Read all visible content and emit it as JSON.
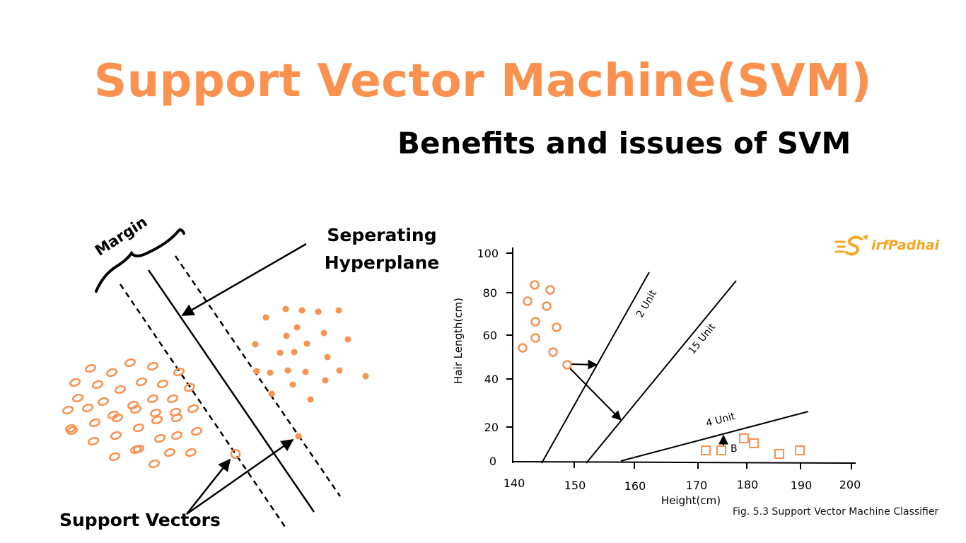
{
  "header": {
    "title": "Support Vector Machine(SVM)",
    "subtitle": "Benefits and issues of SVM"
  },
  "left_diagram": {
    "margin_label": "Margin",
    "hyperplane_label_line1": "Seperating",
    "hyperplane_label_line2": "Hyperplane",
    "support_vectors_label": "Support Vectors"
  },
  "chart": {
    "ylabel": "Hair Length(cm)",
    "xlabel": "Height(cm)",
    "x_ticks": [
      "140",
      "150",
      "160",
      "170",
      "180",
      "190",
      "200"
    ],
    "y_ticks": [
      "100",
      "80",
      "60",
      "40",
      "20",
      "0"
    ],
    "line_labels": [
      "2 Unit",
      "15 Unit",
      "4 Unit"
    ],
    "point_label": "B",
    "caption": "Fig. 5.3 Support Vector Machine  Classifier"
  },
  "brand": {
    "name": "irfPadhai"
  },
  "colors": {
    "accent": "#fb914f",
    "brand": "#f5a623",
    "ink": "#000000"
  },
  "icons": {
    "brand_logo": "rocket-s-logo-icon"
  }
}
